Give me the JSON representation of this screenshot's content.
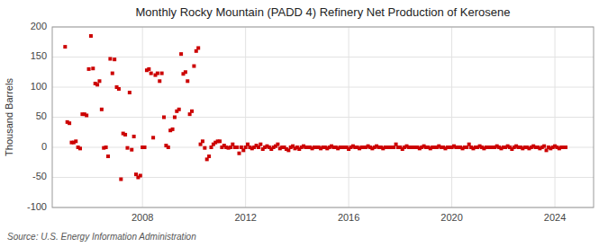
{
  "chart_data": {
    "type": "scatter",
    "title": "Monthly Rocky Mountain (PADD 4) Refinery Net Production of Kerosene",
    "ylabel": "Thousand Barrels",
    "annotation": "Source: U.S. Energy Information Administration",
    "color": "#cc0000",
    "marker": "square",
    "grid": true,
    "xlim": [
      2004.5,
      2025.5
    ],
    "xticks": [
      2008,
      2012,
      2016,
      2020,
      2024
    ],
    "ylim": [
      -100,
      200
    ],
    "yticks": [
      -100,
      -50,
      0,
      50,
      100,
      150,
      200
    ],
    "x": [
      2005,
      2005.083,
      2005.167,
      2005.25,
      2005.333,
      2005.417,
      2005.5,
      2005.583,
      2005.667,
      2005.75,
      2005.833,
      2005.917,
      2006,
      2006.083,
      2006.167,
      2006.25,
      2006.333,
      2006.417,
      2006.5,
      2006.583,
      2006.667,
      2006.75,
      2006.833,
      2006.917,
      2007,
      2007.083,
      2007.167,
      2007.25,
      2007.333,
      2007.417,
      2007.5,
      2007.583,
      2007.667,
      2007.75,
      2007.833,
      2007.917,
      2008,
      2008.083,
      2008.167,
      2008.25,
      2008.333,
      2008.417,
      2008.5,
      2008.583,
      2008.667,
      2008.75,
      2008.833,
      2008.917,
      2009,
      2009.083,
      2009.167,
      2009.25,
      2009.333,
      2009.417,
      2009.5,
      2009.583,
      2009.667,
      2009.75,
      2009.833,
      2009.917,
      2010,
      2010.083,
      2010.167,
      2010.25,
      2010.333,
      2010.417,
      2010.5,
      2010.583,
      2010.667,
      2010.75,
      2010.833,
      2010.917,
      2011,
      2011.083,
      2011.167,
      2011.25,
      2011.333,
      2011.417,
      2011.5,
      2011.583,
      2011.667,
      2011.75,
      2011.833,
      2011.917,
      2012,
      2012.083,
      2012.167,
      2012.25,
      2012.333,
      2012.417,
      2012.5,
      2012.583,
      2012.667,
      2012.75,
      2012.833,
      2012.917,
      2013,
      2013.083,
      2013.167,
      2013.25,
      2013.333,
      2013.417,
      2013.5,
      2013.583,
      2013.667,
      2013.75,
      2013.833,
      2013.917,
      2014,
      2014.083,
      2014.167,
      2014.25,
      2014.333,
      2014.417,
      2014.5,
      2014.583,
      2014.667,
      2014.75,
      2014.833,
      2014.917,
      2015,
      2015.083,
      2015.167,
      2015.25,
      2015.333,
      2015.417,
      2015.5,
      2015.583,
      2015.667,
      2015.75,
      2015.833,
      2015.917,
      2016,
      2016.083,
      2016.167,
      2016.25,
      2016.333,
      2016.417,
      2016.5,
      2016.583,
      2016.667,
      2016.75,
      2016.833,
      2016.917,
      2017,
      2017.083,
      2017.167,
      2017.25,
      2017.333,
      2017.417,
      2017.5,
      2017.583,
      2017.667,
      2017.75,
      2017.833,
      2017.917,
      2018,
      2018.083,
      2018.167,
      2018.25,
      2018.333,
      2018.417,
      2018.5,
      2018.583,
      2018.667,
      2018.75,
      2018.833,
      2018.917,
      2019,
      2019.083,
      2019.167,
      2019.25,
      2019.333,
      2019.417,
      2019.5,
      2019.583,
      2019.667,
      2019.75,
      2019.833,
      2019.917,
      2020,
      2020.083,
      2020.167,
      2020.25,
      2020.333,
      2020.417,
      2020.5,
      2020.583,
      2020.667,
      2020.75,
      2020.833,
      2020.917,
      2021,
      2021.083,
      2021.167,
      2021.25,
      2021.333,
      2021.417,
      2021.5,
      2021.583,
      2021.667,
      2021.75,
      2021.833,
      2021.917,
      2022,
      2022.083,
      2022.167,
      2022.25,
      2022.333,
      2022.417,
      2022.5,
      2022.583,
      2022.667,
      2022.75,
      2022.833,
      2022.917,
      2023,
      2023.083,
      2023.167,
      2023.25,
      2023.333,
      2023.417,
      2023.5,
      2023.583,
      2023.667,
      2023.75,
      2023.833,
      2023.917,
      2024,
      2024.083,
      2024.167,
      2024.25,
      2024.333,
      2024.417
    ],
    "values": [
      167,
      42,
      40,
      8,
      8,
      10,
      0,
      -2,
      55,
      55,
      53,
      130,
      185,
      131,
      106,
      104,
      110,
      63,
      -1,
      0,
      -15,
      147,
      123,
      146,
      100,
      97,
      -53,
      23,
      21,
      -1,
      91,
      -4,
      18,
      -45,
      -50,
      -47,
      0,
      0,
      128,
      130,
      123,
      16,
      120,
      123,
      110,
      123,
      50,
      3,
      0,
      28,
      30,
      50,
      60,
      63,
      155,
      122,
      125,
      110,
      55,
      60,
      135,
      160,
      165,
      5,
      10,
      -1,
      -20,
      -15,
      0,
      5,
      8,
      10,
      10,
      0,
      3,
      0,
      -1,
      0,
      5,
      0,
      0,
      -10,
      0,
      -5,
      0,
      5,
      0,
      -2,
      0,
      3,
      0,
      5,
      -3,
      0,
      2,
      0,
      -3,
      0,
      2,
      5,
      -2,
      0,
      0,
      -3,
      -5,
      0,
      2,
      -2,
      0,
      -3,
      0,
      2,
      0,
      0,
      0,
      -2,
      0,
      0,
      0,
      -2,
      0,
      0,
      -2,
      0,
      2,
      0,
      0,
      -2,
      0,
      0,
      0,
      0,
      -3,
      0,
      2,
      0,
      0,
      -2,
      0,
      0,
      0,
      2,
      0,
      -2,
      0,
      2,
      0,
      0,
      -2,
      0,
      0,
      0,
      0,
      0,
      5,
      0,
      0,
      -3,
      0,
      2,
      0,
      0,
      0,
      0,
      0,
      -2,
      0,
      2,
      0,
      0,
      -2,
      0,
      0,
      0,
      2,
      0,
      0,
      -2,
      0,
      0,
      0,
      2,
      0,
      0,
      0,
      -2,
      0,
      0,
      5,
      0,
      -2,
      0,
      0,
      2,
      0,
      -2,
      0,
      0,
      0,
      0,
      0,
      2,
      0,
      -2,
      0,
      0,
      2,
      0,
      -3,
      0,
      2,
      0,
      0,
      -2,
      0,
      0,
      -2,
      0,
      2,
      0,
      0,
      -2,
      0,
      2,
      -5,
      0,
      -2,
      0,
      2,
      0,
      -2,
      0,
      0,
      0
    ]
  }
}
